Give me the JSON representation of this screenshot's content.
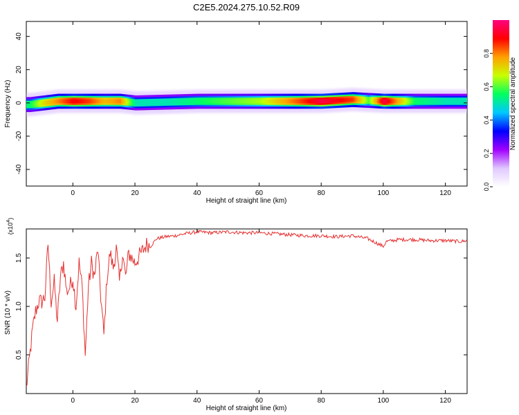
{
  "title": "C2E5.2024.275.10.52.R09",
  "chart_data": [
    {
      "type": "heatmap",
      "title": "C2E5.2024.275.10.52.R09",
      "xlabel": "Height of straight line (km)",
      "ylabel": "Frequency (Hz)",
      "xlim": [
        -15,
        127
      ],
      "ylim": [
        -50,
        49
      ],
      "x_ticks": [
        0,
        20,
        40,
        60,
        80,
        100,
        120
      ],
      "y_ticks": [
        -40,
        -20,
        0,
        20,
        40
      ],
      "colorbar": {
        "label": "Normalized spectral amplitude",
        "range": [
          0,
          1
        ],
        "ticks": [
          0.0,
          0.2,
          0.4,
          0.6,
          0.8
        ],
        "colors": [
          "#ffffff",
          "#e0c8ff",
          "#a000ff",
          "#0000ff",
          "#00c8ff",
          "#00ff60",
          "#c8ff00",
          "#ffa000",
          "#ff0000",
          "#ff0080"
        ]
      },
      "ridge": {
        "center_hz": [
          [
            -14,
            -1
          ],
          [
            -5,
            1
          ],
          [
            0,
            1
          ],
          [
            5,
            1
          ],
          [
            10,
            1
          ],
          [
            15,
            1
          ],
          [
            20,
            0
          ],
          [
            40,
            1
          ],
          [
            60,
            1
          ],
          [
            80,
            1
          ],
          [
            90,
            2
          ],
          [
            100,
            1
          ],
          [
            110,
            1
          ],
          [
            127,
            1
          ]
        ],
        "peak_amplitude": [
          [
            -14,
            0.55
          ],
          [
            -10,
            0.7
          ],
          [
            -5,
            0.8
          ],
          [
            0,
            0.9
          ],
          [
            5,
            0.85
          ],
          [
            10,
            0.75
          ],
          [
            15,
            0.8
          ],
          [
            20,
            0.5
          ],
          [
            30,
            0.5
          ],
          [
            40,
            0.55
          ],
          [
            50,
            0.6
          ],
          [
            60,
            0.65
          ],
          [
            70,
            0.8
          ],
          [
            80,
            0.95
          ],
          [
            90,
            0.85
          ],
          [
            95,
            0.6
          ],
          [
            100,
            0.95
          ],
          [
            110,
            0.55
          ],
          [
            120,
            0.5
          ],
          [
            127,
            0.5
          ]
        ]
      }
    },
    {
      "type": "line",
      "xlabel": "Height of straight line (km)",
      "ylabel": "SNR (10 * v/v)",
      "y_exponent_label": "(x10",
      "y_exponent_power": "4",
      "y_exponent_close": ")",
      "xlim": [
        -15,
        127
      ],
      "ylim": [
        0.1,
        1.8
      ],
      "x_ticks": [
        0,
        20,
        40,
        60,
        80,
        100,
        120
      ],
      "y_ticks": [
        0.5,
        1.0,
        1.5
      ],
      "color": "#e53030",
      "series": [
        {
          "values": [
            [
              -15,
              0.15
            ],
            [
              -14,
              0.45
            ],
            [
              -13,
              0.75
            ],
            [
              -12,
              0.95
            ],
            [
              -11,
              1.05
            ],
            [
              -10,
              1.05
            ],
            [
              -9,
              1.1
            ],
            [
              -8,
              1.65
            ],
            [
              -7,
              1.05
            ],
            [
              -6,
              1.25
            ],
            [
              -5,
              0.85
            ],
            [
              -4,
              1.3
            ],
            [
              -3,
              1.45
            ],
            [
              -2,
              1.15
            ],
            [
              -1,
              1.2
            ],
            [
              0,
              1.3
            ],
            [
              1,
              1.0
            ],
            [
              2,
              1.45
            ],
            [
              3,
              1.2
            ],
            [
              4,
              0.5
            ],
            [
              5,
              1.2
            ],
            [
              6,
              1.45
            ],
            [
              7,
              1.3
            ],
            [
              8,
              1.6
            ],
            [
              9,
              1.1
            ],
            [
              10,
              0.7
            ],
            [
              11,
              1.3
            ],
            [
              12,
              1.55
            ],
            [
              13,
              1.4
            ],
            [
              14,
              1.6
            ],
            [
              15,
              1.25
            ],
            [
              16,
              1.55
            ],
            [
              17,
              1.3
            ],
            [
              18,
              1.55
            ],
            [
              20,
              1.45
            ],
            [
              22,
              1.55
            ],
            [
              24,
              1.65
            ],
            [
              25,
              1.62
            ],
            [
              27,
              1.7
            ],
            [
              30,
              1.72
            ],
            [
              33,
              1.73
            ],
            [
              36,
              1.75
            ],
            [
              40,
              1.77
            ],
            [
              45,
              1.76
            ],
            [
              50,
              1.77
            ],
            [
              55,
              1.76
            ],
            [
              60,
              1.76
            ],
            [
              65,
              1.75
            ],
            [
              70,
              1.74
            ],
            [
              75,
              1.73
            ],
            [
              80,
              1.73
            ],
            [
              85,
              1.72
            ],
            [
              90,
              1.73
            ],
            [
              95,
              1.7
            ],
            [
              100,
              1.62
            ],
            [
              101,
              1.67
            ],
            [
              105,
              1.69
            ],
            [
              110,
              1.69
            ],
            [
              115,
              1.68
            ],
            [
              120,
              1.68
            ],
            [
              125,
              1.67
            ],
            [
              127,
              1.68
            ]
          ]
        }
      ]
    }
  ]
}
